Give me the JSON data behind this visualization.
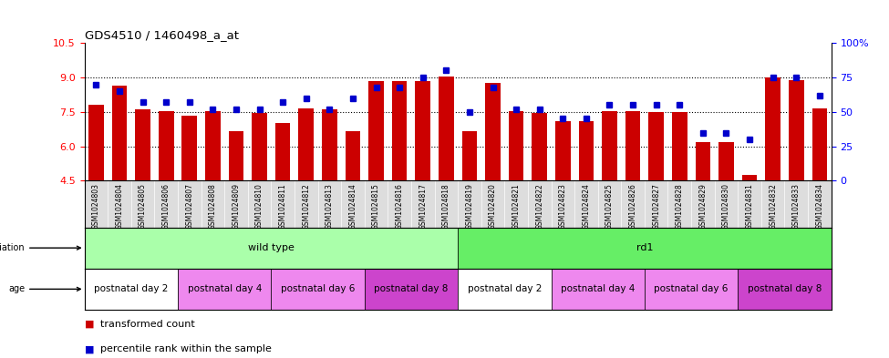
{
  "title": "GDS4510 / 1460498_a_at",
  "samples": [
    "GSM1024803",
    "GSM1024804",
    "GSM1024805",
    "GSM1024806",
    "GSM1024807",
    "GSM1024808",
    "GSM1024809",
    "GSM1024810",
    "GSM1024811",
    "GSM1024812",
    "GSM1024813",
    "GSM1024814",
    "GSM1024815",
    "GSM1024816",
    "GSM1024817",
    "GSM1024818",
    "GSM1024819",
    "GSM1024820",
    "GSM1024821",
    "GSM1024822",
    "GSM1024823",
    "GSM1024824",
    "GSM1024825",
    "GSM1024826",
    "GSM1024827",
    "GSM1024828",
    "GSM1024829",
    "GSM1024830",
    "GSM1024831",
    "GSM1024832",
    "GSM1024833",
    "GSM1024834"
  ],
  "bar_values": [
    7.8,
    8.65,
    7.6,
    7.55,
    7.35,
    7.55,
    6.65,
    7.45,
    7.0,
    7.65,
    7.6,
    6.65,
    8.85,
    8.85,
    8.85,
    9.05,
    6.65,
    8.75,
    7.55,
    7.45,
    7.1,
    7.1,
    7.55,
    7.55,
    7.5,
    7.5,
    6.2,
    6.2,
    4.75,
    9.0,
    8.9,
    7.65
  ],
  "percentile_values": [
    70,
    65,
    57,
    57,
    57,
    52,
    52,
    52,
    57,
    60,
    52,
    60,
    68,
    68,
    75,
    80,
    50,
    68,
    52,
    52,
    45,
    45,
    55,
    55,
    55,
    55,
    35,
    35,
    30,
    75,
    75,
    62
  ],
  "ylim_left": [
    4.5,
    10.5
  ],
  "ylim_right": [
    0,
    100
  ],
  "yticks_left": [
    4.5,
    6.0,
    7.5,
    9.0,
    10.5
  ],
  "yticks_right": [
    0,
    25,
    50,
    75,
    100
  ],
  "bar_color": "#cc0000",
  "dot_color": "#0000cc",
  "gridline_y": [
    6.0,
    7.5,
    9.0
  ],
  "genotype_groups": [
    {
      "label": "wild type",
      "start": 0,
      "end": 16,
      "color": "#aaffaa"
    },
    {
      "label": "rd1",
      "start": 16,
      "end": 32,
      "color": "#66ee66"
    }
  ],
  "age_groups": [
    {
      "label": "postnatal day 2",
      "start": 0,
      "end": 4,
      "color": "#ffffff"
    },
    {
      "label": "postnatal day 4",
      "start": 4,
      "end": 8,
      "color": "#ee88ee"
    },
    {
      "label": "postnatal day 6",
      "start": 8,
      "end": 12,
      "color": "#ee88ee"
    },
    {
      "label": "postnatal day 8",
      "start": 12,
      "end": 16,
      "color": "#cc44cc"
    },
    {
      "label": "postnatal day 2",
      "start": 16,
      "end": 20,
      "color": "#ffffff"
    },
    {
      "label": "postnatal day 4",
      "start": 20,
      "end": 24,
      "color": "#ee88ee"
    },
    {
      "label": "postnatal day 6",
      "start": 24,
      "end": 28,
      "color": "#ee88ee"
    },
    {
      "label": "postnatal day 8",
      "start": 28,
      "end": 32,
      "color": "#cc44cc"
    }
  ],
  "legend_items": [
    {
      "label": "transformed count",
      "color": "#cc0000"
    },
    {
      "label": "percentile rank within the sample",
      "color": "#0000cc"
    }
  ],
  "tick_label_bg": "#dddddd",
  "fig_width": 9.75,
  "fig_height": 3.93,
  "dpi": 100
}
